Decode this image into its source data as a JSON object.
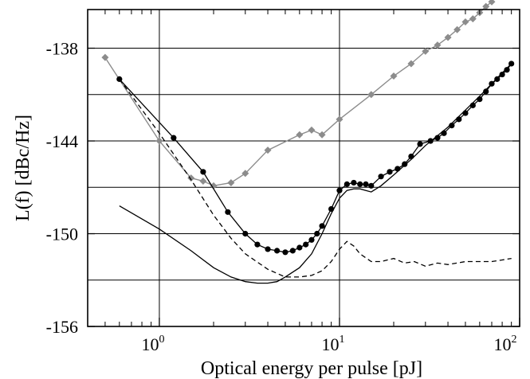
{
  "chart_data": {
    "type": "line",
    "xlabel": "Optical energy per pulse [pJ]",
    "ylabel": "L(f) [dBc/Hz]",
    "x_scale": "log",
    "xlim": [
      0.4,
      100
    ],
    "ylim": [
      -156,
      -135.5
    ],
    "grid": true,
    "legend": "none",
    "x_ticks": [
      {
        "base": "10",
        "exp": "0",
        "value": 1
      },
      {
        "base": "10",
        "exp": "1",
        "value": 10
      },
      {
        "base": "10",
        "exp": "2",
        "value": 100
      }
    ],
    "y_ticks": [
      {
        "label": "-138",
        "value": -138
      },
      {
        "label": "-144",
        "value": -144
      },
      {
        "label": "-150",
        "value": -150
      },
      {
        "label": "-156",
        "value": -156
      }
    ],
    "y_gridlines": [
      -138,
      -141,
      -144,
      -147,
      -150,
      -153
    ],
    "series": [
      {
        "style": "gray-diamond",
        "color": "#8c8c8c",
        "marker": "diamond",
        "dash": "none",
        "x": [
          0.5,
          1.0,
          1.5,
          1.75,
          2.0,
          2.5,
          3.0,
          4.0,
          6.0,
          7.0,
          8.0,
          10.0,
          15.0,
          20.0,
          25.0,
          30.0,
          35.0,
          40.0,
          45.0,
          50.0,
          55.0,
          60.0,
          65.0,
          70.0
        ],
        "y": [
          -138.6,
          -144.0,
          -146.4,
          -146.6,
          -146.9,
          -146.7,
          -146.1,
          -144.6,
          -143.6,
          -143.3,
          -143.6,
          -142.6,
          -141.0,
          -139.8,
          -139.0,
          -138.2,
          -137.8,
          -137.3,
          -136.8,
          -136.3,
          -136.1,
          -135.7,
          -135.3,
          -135.0
        ]
      },
      {
        "style": "black-circle",
        "color": "#000000",
        "marker": "circle",
        "dash": "none",
        "x": [
          0.6,
          1.2,
          1.75,
          2.4,
          3.0,
          3.5,
          4.0,
          4.5,
          5.0,
          5.5,
          6.0,
          6.5,
          7.0,
          7.5,
          8.0,
          9.0,
          10.0,
          11.0,
          12.0,
          13.0,
          14.0,
          15.0,
          17.0,
          19.0,
          21.0,
          23.0,
          25.0,
          28.0,
          32.0,
          35.0,
          38.0,
          42.0,
          46.0,
          50.0,
          55.0,
          60.0,
          65.0,
          70.0,
          75.0,
          80.0,
          85.0,
          90.0
        ],
        "y": [
          -140.0,
          -143.8,
          -146.0,
          -148.6,
          -150.0,
          -150.7,
          -151.0,
          -151.1,
          -151.2,
          -151.1,
          -150.9,
          -150.7,
          -150.4,
          -150.0,
          -149.5,
          -148.4,
          -147.2,
          -146.8,
          -146.7,
          -146.8,
          -146.8,
          -146.9,
          -146.3,
          -146.0,
          -145.8,
          -145.5,
          -145.0,
          -144.2,
          -144.0,
          -143.8,
          -143.5,
          -143.0,
          -142.6,
          -142.2,
          -141.7,
          -141.3,
          -140.8,
          -140.3,
          -140.0,
          -139.7,
          -139.4,
          -139.0
        ]
      },
      {
        "style": "black-dashed",
        "color": "#000000",
        "marker": "none",
        "dash": "6 4",
        "x": [
          0.6,
          1.0,
          1.5,
          2.0,
          2.5,
          3.0,
          4.0,
          5.0,
          6.0,
          7.0,
          8.0,
          9.0,
          10.0,
          11.0,
          12.0,
          13.0,
          15.0,
          17.0,
          20.0,
          23.0,
          26.0,
          30.0,
          35.0,
          40.0,
          50.0,
          60.0,
          70.0,
          80.0,
          90.0
        ],
        "y": [
          -140.0,
          -143.5,
          -146.5,
          -148.8,
          -150.3,
          -151.3,
          -152.3,
          -152.8,
          -152.8,
          -152.7,
          -152.4,
          -151.8,
          -151.0,
          -150.5,
          -150.8,
          -151.3,
          -151.8,
          -151.8,
          -151.6,
          -151.9,
          -151.8,
          -152.1,
          -151.9,
          -152.0,
          -151.8,
          -151.8,
          -151.8,
          -151.7,
          -151.6
        ]
      },
      {
        "style": "black-solid",
        "color": "#000000",
        "marker": "none",
        "dash": "none",
        "x": [
          0.6,
          1.0,
          1.5,
          2.0,
          2.5,
          3.0,
          3.5,
          4.0,
          4.5,
          5.0,
          6.0,
          7.0,
          8.0,
          9.0,
          10.0,
          11.0,
          12.0,
          13.0,
          14.0,
          15.0,
          17.0,
          20.0,
          25.0,
          30.0,
          40.0,
          50.0,
          60.0,
          70.0,
          80.0,
          90.0
        ],
        "y": [
          -148.2,
          -149.7,
          -151.1,
          -152.2,
          -152.8,
          -153.1,
          -153.2,
          -153.2,
          -153.1,
          -152.8,
          -152.2,
          -151.3,
          -150.0,
          -148.7,
          -147.7,
          -147.2,
          -147.1,
          -147.1,
          -147.2,
          -147.3,
          -146.9,
          -146.2,
          -145.2,
          -144.3,
          -143.1,
          -142.0,
          -141.1,
          -140.3,
          -139.6,
          -139.0
        ]
      }
    ]
  }
}
